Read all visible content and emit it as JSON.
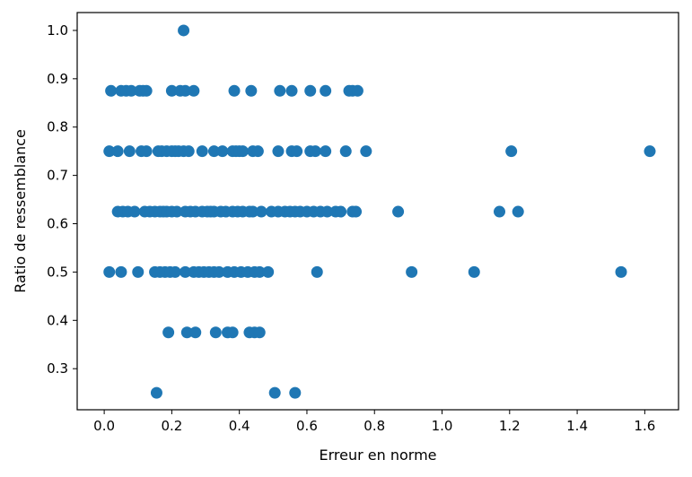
{
  "chart_data": {
    "type": "scatter",
    "xlabel": "Erreur en norme",
    "ylabel": "Ratio de ressemblance",
    "xlim": [
      -0.08,
      1.7
    ],
    "ylim": [
      0.215,
      1.037
    ],
    "xticks": [
      0.0,
      0.2,
      0.4,
      0.6,
      0.8,
      1.0,
      1.2,
      1.4,
      1.6
    ],
    "xtick_labels": [
      "0.0",
      "0.2",
      "0.4",
      "0.6",
      "0.8",
      "1.0",
      "1.2",
      "1.4",
      "1.6"
    ],
    "yticks": [
      0.3,
      0.4,
      0.5,
      0.6,
      0.7,
      0.8,
      0.9,
      1.0
    ],
    "ytick_labels": [
      "0.3",
      "0.4",
      "0.5",
      "0.6",
      "0.7",
      "0.8",
      "0.9",
      "1.0"
    ],
    "grid": false,
    "marker_color": "#1f77b4",
    "series": [
      {
        "points": [
          [
            0.235,
            1.0
          ],
          [
            0.02,
            0.875
          ],
          [
            0.05,
            0.875
          ],
          [
            0.065,
            0.875
          ],
          [
            0.08,
            0.875
          ],
          [
            0.105,
            0.875
          ],
          [
            0.115,
            0.875
          ],
          [
            0.125,
            0.875
          ],
          [
            0.2,
            0.875
          ],
          [
            0.225,
            0.875
          ],
          [
            0.24,
            0.875
          ],
          [
            0.265,
            0.875
          ],
          [
            0.385,
            0.875
          ],
          [
            0.435,
            0.875
          ],
          [
            0.52,
            0.875
          ],
          [
            0.555,
            0.875
          ],
          [
            0.61,
            0.875
          ],
          [
            0.655,
            0.875
          ],
          [
            0.725,
            0.875
          ],
          [
            0.735,
            0.875
          ],
          [
            0.75,
            0.875
          ],
          [
            0.015,
            0.75
          ],
          [
            0.04,
            0.75
          ],
          [
            0.075,
            0.75
          ],
          [
            0.11,
            0.75
          ],
          [
            0.125,
            0.75
          ],
          [
            0.16,
            0.75
          ],
          [
            0.17,
            0.75
          ],
          [
            0.185,
            0.75
          ],
          [
            0.2,
            0.75
          ],
          [
            0.21,
            0.75
          ],
          [
            0.22,
            0.75
          ],
          [
            0.235,
            0.75
          ],
          [
            0.25,
            0.75
          ],
          [
            0.29,
            0.75
          ],
          [
            0.325,
            0.75
          ],
          [
            0.35,
            0.75
          ],
          [
            0.38,
            0.75
          ],
          [
            0.39,
            0.75
          ],
          [
            0.4,
            0.75
          ],
          [
            0.41,
            0.75
          ],
          [
            0.44,
            0.75
          ],
          [
            0.455,
            0.75
          ],
          [
            0.515,
            0.75
          ],
          [
            0.555,
            0.75
          ],
          [
            0.57,
            0.75
          ],
          [
            0.61,
            0.75
          ],
          [
            0.625,
            0.75
          ],
          [
            0.655,
            0.75
          ],
          [
            0.715,
            0.75
          ],
          [
            0.775,
            0.75
          ],
          [
            1.205,
            0.75
          ],
          [
            1.615,
            0.75
          ],
          [
            0.04,
            0.625
          ],
          [
            0.055,
            0.625
          ],
          [
            0.07,
            0.625
          ],
          [
            0.09,
            0.625
          ],
          [
            0.12,
            0.625
          ],
          [
            0.135,
            0.625
          ],
          [
            0.15,
            0.625
          ],
          [
            0.165,
            0.625
          ],
          [
            0.175,
            0.625
          ],
          [
            0.185,
            0.625
          ],
          [
            0.2,
            0.625
          ],
          [
            0.215,
            0.625
          ],
          [
            0.24,
            0.625
          ],
          [
            0.255,
            0.625
          ],
          [
            0.27,
            0.625
          ],
          [
            0.29,
            0.625
          ],
          [
            0.305,
            0.625
          ],
          [
            0.315,
            0.625
          ],
          [
            0.325,
            0.625
          ],
          [
            0.345,
            0.625
          ],
          [
            0.36,
            0.625
          ],
          [
            0.38,
            0.625
          ],
          [
            0.395,
            0.625
          ],
          [
            0.41,
            0.625
          ],
          [
            0.43,
            0.625
          ],
          [
            0.44,
            0.625
          ],
          [
            0.465,
            0.625
          ],
          [
            0.495,
            0.625
          ],
          [
            0.515,
            0.625
          ],
          [
            0.535,
            0.625
          ],
          [
            0.55,
            0.625
          ],
          [
            0.565,
            0.625
          ],
          [
            0.58,
            0.625
          ],
          [
            0.6,
            0.625
          ],
          [
            0.62,
            0.625
          ],
          [
            0.64,
            0.625
          ],
          [
            0.66,
            0.625
          ],
          [
            0.685,
            0.625
          ],
          [
            0.7,
            0.625
          ],
          [
            0.735,
            0.625
          ],
          [
            0.745,
            0.625
          ],
          [
            0.87,
            0.625
          ],
          [
            1.17,
            0.625
          ],
          [
            1.225,
            0.625
          ],
          [
            0.015,
            0.5
          ],
          [
            0.05,
            0.5
          ],
          [
            0.1,
            0.5
          ],
          [
            0.15,
            0.5
          ],
          [
            0.165,
            0.5
          ],
          [
            0.18,
            0.5
          ],
          [
            0.195,
            0.5
          ],
          [
            0.21,
            0.5
          ],
          [
            0.24,
            0.5
          ],
          [
            0.265,
            0.5
          ],
          [
            0.28,
            0.5
          ],
          [
            0.295,
            0.5
          ],
          [
            0.31,
            0.5
          ],
          [
            0.325,
            0.5
          ],
          [
            0.34,
            0.5
          ],
          [
            0.365,
            0.5
          ],
          [
            0.385,
            0.5
          ],
          [
            0.405,
            0.5
          ],
          [
            0.425,
            0.5
          ],
          [
            0.445,
            0.5
          ],
          [
            0.46,
            0.5
          ],
          [
            0.485,
            0.5
          ],
          [
            0.63,
            0.5
          ],
          [
            0.91,
            0.5
          ],
          [
            1.095,
            0.5
          ],
          [
            1.53,
            0.5
          ],
          [
            0.19,
            0.375
          ],
          [
            0.245,
            0.375
          ],
          [
            0.27,
            0.375
          ],
          [
            0.33,
            0.375
          ],
          [
            0.365,
            0.375
          ],
          [
            0.38,
            0.375
          ],
          [
            0.43,
            0.375
          ],
          [
            0.445,
            0.375
          ],
          [
            0.46,
            0.375
          ],
          [
            0.155,
            0.25
          ],
          [
            0.505,
            0.25
          ],
          [
            0.565,
            0.25
          ]
        ]
      }
    ]
  }
}
